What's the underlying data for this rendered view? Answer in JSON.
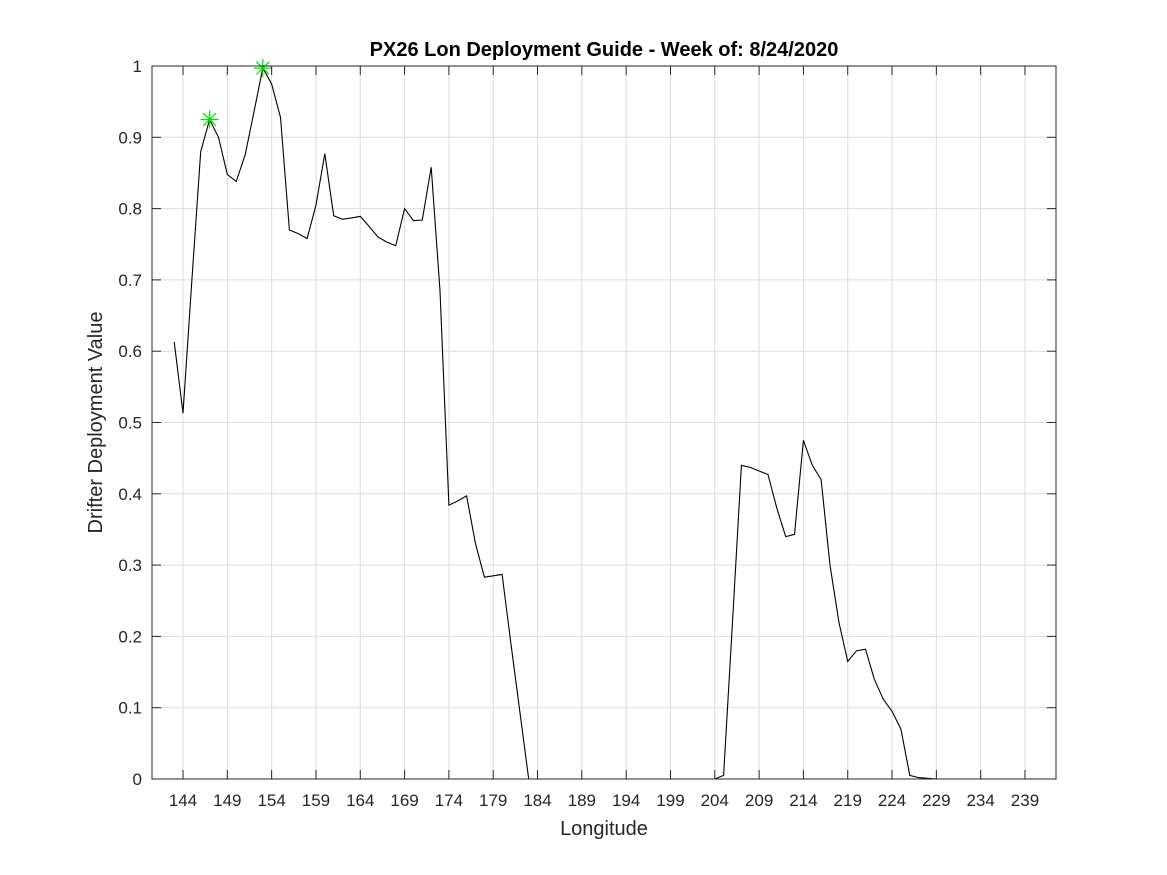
{
  "chart_data": {
    "type": "line",
    "title": "PX26 Lon Deployment Guide - Week of: 8/24/2020",
    "xlabel": "Longitude",
    "ylabel": "Drifter Deployment Value",
    "xlim": [
      140.5,
      242.5
    ],
    "ylim": [
      0,
      1
    ],
    "xticks": [
      144,
      149,
      154,
      159,
      164,
      169,
      174,
      179,
      184,
      189,
      194,
      199,
      204,
      209,
      214,
      219,
      224,
      229,
      234,
      239
    ],
    "yticks": [
      0,
      0.1,
      0.2,
      0.3,
      0.4,
      0.5,
      0.6,
      0.7,
      0.8,
      0.9,
      1
    ],
    "ytick_labels": [
      "0",
      "0.1",
      "0.2",
      "0.3",
      "0.4",
      "0.5",
      "0.6",
      "0.7",
      "0.8",
      "0.9",
      "1"
    ],
    "grid": true,
    "line_color": "#000000",
    "marker_color": "#00dd00",
    "series": [
      {
        "x": [
          143,
          144,
          145,
          146,
          147,
          148,
          149,
          150,
          151,
          152,
          153,
          154,
          155,
          156,
          157,
          158,
          159,
          160,
          161,
          162,
          163,
          164,
          165,
          166,
          167,
          168,
          169,
          170,
          171,
          172,
          173,
          174,
          175,
          176,
          177,
          178,
          179,
          180,
          181,
          182,
          183,
          184,
          185,
          186,
          187,
          188,
          189,
          190,
          191,
          192,
          193,
          194,
          195,
          196,
          197,
          198,
          199,
          200,
          201,
          202,
          203,
          204,
          205,
          206,
          207,
          208,
          209,
          210,
          211,
          212,
          213,
          214,
          215,
          216,
          217,
          218,
          219,
          220,
          221,
          222,
          223,
          224,
          225,
          226,
          227,
          228,
          229,
          230,
          231,
          232,
          233,
          234,
          235,
          236,
          237
        ],
        "values": [
          0.613,
          0.513,
          0.7,
          0.88,
          0.925,
          0.9,
          0.848,
          0.838,
          0.875,
          0.935,
          0.997,
          0.975,
          0.928,
          0.77,
          0.765,
          0.758,
          0.805,
          0.877,
          0.79,
          0.785,
          0.787,
          0.789,
          0.775,
          0.76,
          0.753,
          0.748,
          0.8,
          0.783,
          0.784,
          0.858,
          0.685,
          0.384,
          0.39,
          0.397,
          0.33,
          0.283,
          0.285,
          0.287,
          0.19,
          0.095,
          0,
          0,
          0,
          0,
          0,
          0,
          0,
          0,
          0,
          0,
          0,
          0,
          0,
          0,
          0,
          0,
          0,
          0,
          0,
          0,
          0,
          0,
          0.005,
          0.22,
          0.44,
          0.437,
          0.432,
          0.427,
          0.38,
          0.34,
          0.343,
          0.475,
          0.44,
          0.42,
          0.3,
          0.22,
          0.165,
          0.18,
          0.182,
          0.14,
          0.112,
          0.095,
          0.07,
          0.005,
          0.002,
          0.001,
          0,
          0,
          0,
          0,
          0,
          0,
          0,
          0,
          0
        ]
      }
    ],
    "markers": [
      {
        "x": 147,
        "y": 0.925
      },
      {
        "x": 153,
        "y": 0.997
      }
    ]
  }
}
